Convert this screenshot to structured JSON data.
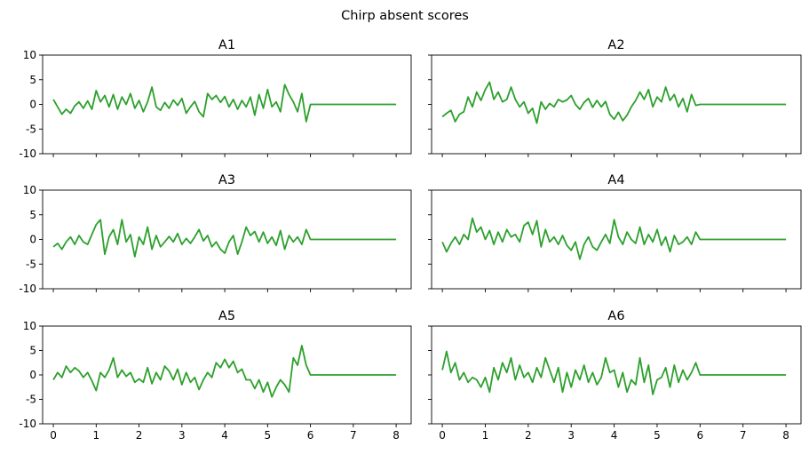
{
  "figure": {
    "title": "Chirp absent scores"
  },
  "chart_data": {
    "type": "line",
    "layout": "3x2 small multiples, shared x and y axes",
    "xlim": [
      -0.25,
      8.35
    ],
    "ylim": [
      -10,
      10
    ],
    "xticks": [
      "0",
      "1",
      "2",
      "3",
      "4",
      "5",
      "6",
      "7",
      "8"
    ],
    "yticks": [
      "10",
      "5",
      "0",
      "-5",
      "-10"
    ],
    "grid": false,
    "line_color": "#2ca02c",
    "note": "Each series is a stepped noisy score trace on x in [0, 6]; after x = 6 the value is flat at 0 through x = 8.",
    "panels": [
      {
        "title": "A1",
        "x": [
          0.0,
          0.1,
          0.2,
          0.3,
          0.4,
          0.5,
          0.6,
          0.7,
          0.8,
          0.9,
          1.0,
          1.1,
          1.2,
          1.3,
          1.4,
          1.5,
          1.6,
          1.7,
          1.8,
          1.9,
          2.0,
          2.1,
          2.2,
          2.3,
          2.4,
          2.5,
          2.6,
          2.7,
          2.8,
          2.9,
          3.0,
          3.1,
          3.2,
          3.3,
          3.4,
          3.5,
          3.6,
          3.7,
          3.8,
          3.9,
          4.0,
          4.1,
          4.2,
          4.3,
          4.4,
          4.5,
          4.6,
          4.7,
          4.8,
          4.9,
          5.0,
          5.1,
          5.2,
          5.3,
          5.4,
          5.5,
          5.6,
          5.7,
          5.8,
          5.9,
          6.0,
          7.0,
          8.0
        ],
        "y": [
          1.0,
          -0.5,
          -2.0,
          -1.0,
          -1.8,
          -0.3,
          0.5,
          -0.8,
          0.7,
          -1.0,
          2.8,
          0.5,
          1.8,
          -0.5,
          2.0,
          -1.0,
          1.5,
          0.0,
          2.2,
          -0.8,
          0.8,
          -1.5,
          0.5,
          3.5,
          -0.5,
          -1.2,
          0.4,
          -0.8,
          0.9,
          -0.2,
          1.2,
          -1.8,
          -0.5,
          0.6,
          -1.5,
          -2.5,
          2.2,
          1.0,
          1.8,
          0.4,
          1.6,
          -0.5,
          1.0,
          -1.0,
          0.8,
          -0.5,
          1.5,
          -2.2,
          2.0,
          -0.8,
          3.0,
          -0.5,
          0.5,
          -1.5,
          4.0,
          2.0,
          0.5,
          -1.5,
          2.2,
          -3.5,
          0.0,
          0.0,
          0.0
        ]
      },
      {
        "title": "A2",
        "x": [
          0.0,
          0.1,
          0.2,
          0.3,
          0.4,
          0.5,
          0.6,
          0.7,
          0.8,
          0.9,
          1.0,
          1.1,
          1.2,
          1.3,
          1.4,
          1.5,
          1.6,
          1.7,
          1.8,
          1.9,
          2.0,
          2.1,
          2.2,
          2.3,
          2.4,
          2.5,
          2.6,
          2.7,
          2.8,
          2.9,
          3.0,
          3.1,
          3.2,
          3.3,
          3.4,
          3.5,
          3.6,
          3.7,
          3.8,
          3.9,
          4.0,
          4.1,
          4.2,
          4.3,
          4.4,
          4.5,
          4.6,
          4.7,
          4.8,
          4.9,
          5.0,
          5.1,
          5.2,
          5.3,
          5.4,
          5.5,
          5.6,
          5.7,
          5.8,
          5.9,
          6.0,
          7.0,
          8.0
        ],
        "y": [
          -2.5,
          -1.8,
          -1.2,
          -3.5,
          -2.0,
          -1.5,
          1.5,
          -0.5,
          2.5,
          0.8,
          3.0,
          4.5,
          1.0,
          2.5,
          0.5,
          1.0,
          3.5,
          1.0,
          -0.5,
          0.5,
          -1.8,
          -0.8,
          -3.8,
          0.5,
          -1.0,
          0.2,
          -0.5,
          1.0,
          0.5,
          0.9,
          1.8,
          0.0,
          -1.0,
          0.4,
          1.2,
          -0.6,
          0.8,
          -0.5,
          0.6,
          -2.0,
          -3.0,
          -1.6,
          -3.3,
          -2.2,
          -0.5,
          0.8,
          2.5,
          1.0,
          3.0,
          -0.5,
          1.5,
          0.5,
          3.5,
          0.8,
          2.0,
          -0.5,
          1.2,
          -1.5,
          2.0,
          -0.2,
          0.0,
          0.0,
          0.0
        ]
      },
      {
        "title": "A3",
        "x": [
          0.0,
          0.1,
          0.2,
          0.3,
          0.4,
          0.5,
          0.6,
          0.7,
          0.8,
          0.9,
          1.0,
          1.1,
          1.2,
          1.3,
          1.4,
          1.5,
          1.6,
          1.7,
          1.8,
          1.9,
          2.0,
          2.1,
          2.2,
          2.3,
          2.4,
          2.5,
          2.6,
          2.7,
          2.8,
          2.9,
          3.0,
          3.1,
          3.2,
          3.3,
          3.4,
          3.5,
          3.6,
          3.7,
          3.8,
          3.9,
          4.0,
          4.1,
          4.2,
          4.3,
          4.4,
          4.5,
          4.6,
          4.7,
          4.8,
          4.9,
          5.0,
          5.1,
          5.2,
          5.3,
          5.4,
          5.5,
          5.6,
          5.7,
          5.8,
          5.9,
          6.0,
          7.0,
          8.0
        ],
        "y": [
          -1.5,
          -0.8,
          -2.0,
          -0.5,
          0.5,
          -1.0,
          0.8,
          -0.5,
          -1.0,
          1.0,
          3.0,
          4.0,
          -3.0,
          0.5,
          2.0,
          -1.0,
          4.0,
          -0.5,
          1.0,
          -3.5,
          0.5,
          -1.0,
          2.5,
          -2.0,
          0.8,
          -1.5,
          -0.5,
          0.6,
          -0.5,
          1.2,
          -1.0,
          0.2,
          -0.8,
          0.5,
          2.0,
          -0.3,
          0.8,
          -1.5,
          -0.5,
          -2.0,
          -2.8,
          -0.5,
          0.8,
          -3.0,
          -0.5,
          2.5,
          0.8,
          1.6,
          -0.5,
          1.5,
          -0.8,
          0.5,
          -1.2,
          1.8,
          -2.0,
          0.8,
          -0.5,
          0.5,
          -1.0,
          2.0,
          0.0,
          0.0,
          0.0
        ]
      },
      {
        "title": "A4",
        "x": [
          0.0,
          0.1,
          0.2,
          0.3,
          0.4,
          0.5,
          0.6,
          0.7,
          0.8,
          0.9,
          1.0,
          1.1,
          1.2,
          1.3,
          1.4,
          1.5,
          1.6,
          1.7,
          1.8,
          1.9,
          2.0,
          2.1,
          2.2,
          2.3,
          2.4,
          2.5,
          2.6,
          2.7,
          2.8,
          2.9,
          3.0,
          3.1,
          3.2,
          3.3,
          3.4,
          3.5,
          3.6,
          3.7,
          3.8,
          3.9,
          4.0,
          4.1,
          4.2,
          4.3,
          4.4,
          4.5,
          4.6,
          4.7,
          4.8,
          4.9,
          5.0,
          5.1,
          5.2,
          5.3,
          5.4,
          5.5,
          5.6,
          5.7,
          5.8,
          5.9,
          6.0,
          7.0,
          8.0
        ],
        "y": [
          -0.5,
          -2.5,
          -0.8,
          0.5,
          -1.0,
          1.0,
          0.0,
          4.3,
          1.5,
          2.5,
          0.0,
          1.8,
          -1.0,
          1.5,
          -0.5,
          2.0,
          0.5,
          1.0,
          -0.5,
          2.8,
          3.5,
          1.0,
          3.8,
          -1.5,
          2.0,
          -0.5,
          0.5,
          -1.0,
          0.8,
          -1.2,
          -2.2,
          -0.5,
          -4.0,
          -1.0,
          0.5,
          -1.5,
          -2.2,
          -0.5,
          1.0,
          -0.8,
          4.0,
          0.5,
          -1.0,
          1.5,
          0.0,
          -0.8,
          2.5,
          -1.0,
          1.0,
          -0.5,
          2.0,
          -1.2,
          0.5,
          -2.5,
          0.8,
          -1.0,
          -0.5,
          0.5,
          -1.0,
          1.5,
          0.0,
          0.0,
          0.0
        ]
      },
      {
        "title": "A5",
        "x": [
          0.0,
          0.1,
          0.2,
          0.3,
          0.4,
          0.5,
          0.6,
          0.7,
          0.8,
          0.9,
          1.0,
          1.1,
          1.2,
          1.3,
          1.4,
          1.5,
          1.6,
          1.7,
          1.8,
          1.9,
          2.0,
          2.1,
          2.2,
          2.3,
          2.4,
          2.5,
          2.6,
          2.7,
          2.8,
          2.9,
          3.0,
          3.1,
          3.2,
          3.3,
          3.4,
          3.5,
          3.6,
          3.7,
          3.8,
          3.9,
          4.0,
          4.1,
          4.2,
          4.3,
          4.4,
          4.5,
          4.6,
          4.7,
          4.8,
          4.9,
          5.0,
          5.1,
          5.2,
          5.3,
          5.4,
          5.5,
          5.6,
          5.7,
          5.8,
          5.9,
          6.0,
          7.0,
          8.0
        ],
        "y": [
          -1.0,
          0.5,
          -0.5,
          1.8,
          0.5,
          1.5,
          0.8,
          -0.5,
          0.5,
          -1.2,
          -3.2,
          0.5,
          -0.5,
          1.0,
          3.5,
          -0.5,
          1.0,
          -0.3,
          0.5,
          -1.5,
          -0.8,
          -1.5,
          1.5,
          -1.8,
          0.5,
          -1.0,
          1.8,
          0.8,
          -1.0,
          1.2,
          -2.0,
          0.5,
          -1.5,
          -0.5,
          -3.0,
          -1.0,
          0.5,
          -0.5,
          2.5,
          1.5,
          3.2,
          1.5,
          2.8,
          0.5,
          1.2,
          -1.0,
          -1.0,
          -2.8,
          -1.0,
          -3.5,
          -1.5,
          -4.5,
          -2.5,
          -1.0,
          -2.0,
          -3.5,
          3.5,
          2.0,
          6.0,
          2.0,
          0.0,
          0.0,
          0.0
        ]
      },
      {
        "title": "A6",
        "x": [
          0.0,
          0.1,
          0.2,
          0.3,
          0.4,
          0.5,
          0.6,
          0.7,
          0.8,
          0.9,
          1.0,
          1.1,
          1.2,
          1.3,
          1.4,
          1.5,
          1.6,
          1.7,
          1.8,
          1.9,
          2.0,
          2.1,
          2.2,
          2.3,
          2.4,
          2.5,
          2.6,
          2.7,
          2.8,
          2.9,
          3.0,
          3.1,
          3.2,
          3.3,
          3.4,
          3.5,
          3.6,
          3.7,
          3.8,
          3.9,
          4.0,
          4.1,
          4.2,
          4.3,
          4.4,
          4.5,
          4.6,
          4.7,
          4.8,
          4.9,
          5.0,
          5.1,
          5.2,
          5.3,
          5.4,
          5.5,
          5.6,
          5.7,
          5.8,
          5.9,
          6.0,
          7.0,
          8.0
        ],
        "y": [
          1.0,
          4.8,
          0.5,
          2.5,
          -1.0,
          0.5,
          -1.5,
          -0.5,
          -1.0,
          -2.5,
          -0.5,
          -3.5,
          1.5,
          -1.0,
          2.5,
          0.5,
          3.5,
          -1.0,
          2.0,
          -0.5,
          0.5,
          -1.5,
          1.5,
          -0.5,
          3.5,
          1.0,
          -1.5,
          1.5,
          -3.5,
          0.5,
          -2.5,
          1.0,
          -1.0,
          2.0,
          -1.5,
          0.5,
          -2.0,
          -0.5,
          3.5,
          0.5,
          1.0,
          -2.5,
          0.5,
          -3.5,
          -1.0,
          -2.0,
          3.5,
          -1.5,
          2.0,
          -4.0,
          -1.0,
          -0.5,
          1.5,
          -2.5,
          2.0,
          -1.5,
          1.0,
          -1.0,
          0.5,
          2.5,
          0.0,
          0.0,
          0.0
        ]
      }
    ]
  }
}
